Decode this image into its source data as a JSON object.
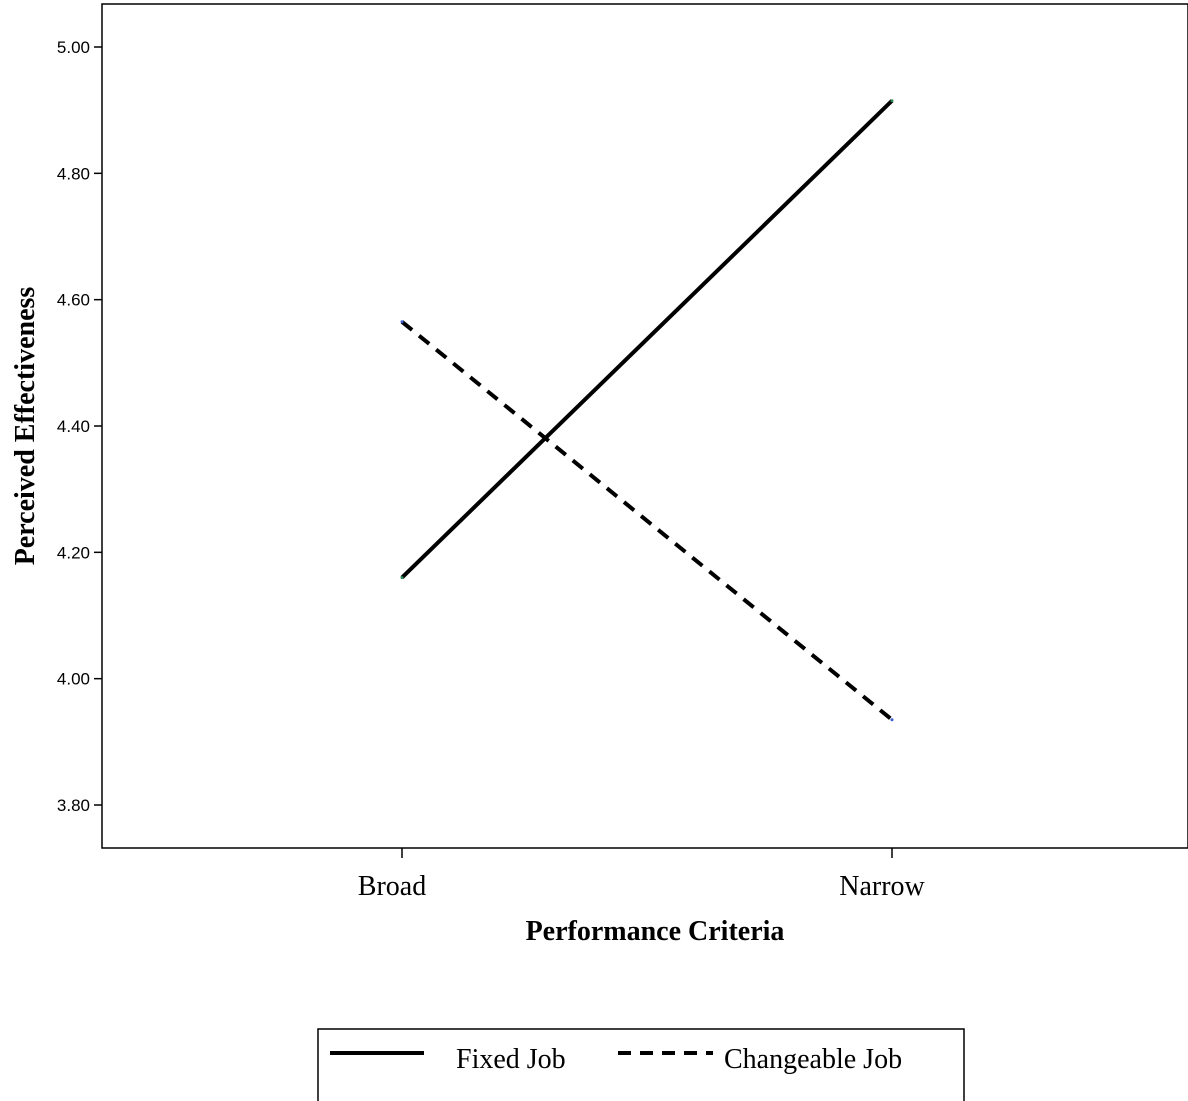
{
  "chart_data": {
    "type": "line",
    "xlabel": "Performance Criteria",
    "ylabel": "Perceived Effectiveness",
    "categories": [
      "Broad",
      "Narrow"
    ],
    "ylim": [
      3.73,
      5.07
    ],
    "yticks": [
      "3.80",
      "4.00",
      "4.20",
      "4.40",
      "4.60",
      "4.80",
      "5.00"
    ],
    "grid": false,
    "legend_position": "bottom",
    "series": [
      {
        "name": "Fixed Job",
        "values": [
          4.16,
          4.915
        ],
        "style": "solid",
        "color": "#000000"
      },
      {
        "name": "Changeable Job",
        "values": [
          4.565,
          3.935
        ],
        "style": "dashed",
        "color": "#000000"
      }
    ]
  }
}
